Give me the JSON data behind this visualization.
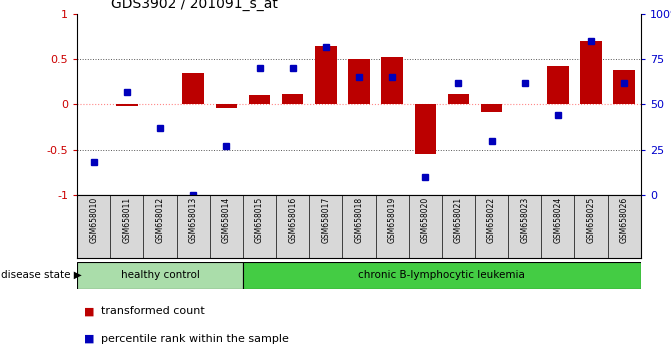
{
  "title": "GDS3902 / 201091_s_at",
  "samples": [
    "GSM658010",
    "GSM658011",
    "GSM658012",
    "GSM658013",
    "GSM658014",
    "GSM658015",
    "GSM658016",
    "GSM658017",
    "GSM658018",
    "GSM658019",
    "GSM658020",
    "GSM658021",
    "GSM658022",
    "GSM658023",
    "GSM658024",
    "GSM658025",
    "GSM658026"
  ],
  "transformed_count": [
    0.0,
    -0.02,
    0.0,
    0.35,
    -0.04,
    0.1,
    0.12,
    0.65,
    0.5,
    0.52,
    -0.55,
    0.12,
    -0.08,
    0.0,
    0.43,
    0.7,
    0.38
  ],
  "percentile_rank": [
    18,
    57,
    37,
    0,
    27,
    70,
    70,
    82,
    65,
    65,
    10,
    62,
    30,
    62,
    44,
    85,
    62
  ],
  "healthy_control_count": 5,
  "chronic_count": 12,
  "bar_color": "#bb0000",
  "dot_color": "#0000bb",
  "healthy_bg": "#aaddaa",
  "chronic_bg": "#44cc44",
  "label_color_left": "#cc0000",
  "label_color_right": "#0000cc",
  "yticks_left": [
    -1,
    -0.5,
    0,
    0.5,
    1
  ],
  "yticks_right": [
    0,
    25,
    50,
    75,
    100
  ],
  "ytick_labels_right": [
    "0",
    "25",
    "50",
    "75",
    "100%"
  ],
  "zero_line_color": "#ff8888",
  "dotted_color": "#555555",
  "legend_bar_label": "transformed count",
  "legend_dot_label": "percentile rank within the sample",
  "disease_state_label": "disease state",
  "healthy_label": "healthy control",
  "chronic_label": "chronic B-lymphocytic leukemia",
  "sample_box_color": "#d8d8d8",
  "fig_width": 6.71,
  "fig_height": 3.54,
  "dpi": 100
}
